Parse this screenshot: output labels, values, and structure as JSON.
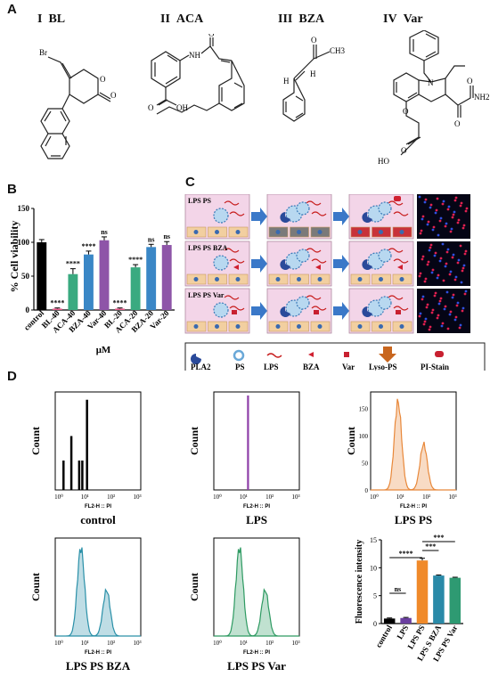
{
  "panels": {
    "A": "A",
    "B": "B",
    "C": "C",
    "D": "D"
  },
  "compounds": [
    {
      "numeral": "I",
      "name": "BL"
    },
    {
      "numeral": "II",
      "name": "ACA"
    },
    {
      "numeral": "III",
      "name": "BZA"
    },
    {
      "numeral": "IV",
      "name": "Var"
    }
  ],
  "atoms": {
    "br": "Br",
    "o": "O",
    "nh": "NH",
    "oh": "OH",
    "h": "H",
    "n": "N",
    "nh2": "NH2",
    "ch3": "CH3",
    "ho": "HO"
  },
  "panelB": {
    "chart_data": {
      "type": "bar",
      "categories": [
        "control",
        "BL-40",
        "ACA-40",
        "BZA-40",
        "Var-40",
        "BL-20",
        "ACA-20",
        "BZA-20",
        "Var-20"
      ],
      "values": [
        100,
        2,
        53,
        82,
        103,
        2,
        63,
        93,
        96
      ],
      "errors": [
        4,
        1,
        8,
        5,
        5,
        1,
        4,
        4,
        5
      ],
      "significance": [
        "",
        "****",
        "****",
        "****",
        "ns",
        "****",
        "****",
        "ns",
        "ns"
      ],
      "colors": [
        "#000000",
        "#e85a8a",
        "#3aaa80",
        "#3a87c6",
        "#8e55a8",
        "#e85a8a",
        "#3aaa80",
        "#3a87c6",
        "#8e55a8"
      ],
      "ylabel": "% Cell viability",
      "xlabel": "μM",
      "ylim": [
        0,
        150
      ],
      "yticks": [
        "0",
        "50",
        "100",
        "150"
      ]
    }
  },
  "panelC": {
    "rows": [
      {
        "label": "LPS PS"
      },
      {
        "label": "LPS PS  BZA"
      },
      {
        "label": "LPS PS Var"
      }
    ],
    "legend": [
      "PLA2",
      "PS",
      "LPS",
      "BZA",
      "Var",
      "Lyso-PS",
      "PI-Stain"
    ]
  },
  "panelD": {
    "histograms": [
      {
        "title": "control",
        "color": "#000000"
      },
      {
        "title": "LPS",
        "color": "#8e3fa8"
      },
      {
        "title": "LPS PS",
        "color": "#e8883a"
      },
      {
        "title": "LPS PS BZA",
        "color": "#2a90a8"
      },
      {
        "title": "LPS PS Var",
        "color": "#2e9a62"
      }
    ],
    "xaxis_label": "FL2-H :: PI",
    "yaxis_label": "Count",
    "xticks": [
      "10⁰",
      "10¹",
      "10²",
      "10³"
    ],
    "yticks_lps_ps": [
      "0",
      "50",
      "100",
      "150"
    ],
    "bar_chart": {
      "chart_data": {
        "type": "bar",
        "categories": [
          "control",
          "LPS",
          "LPS PS",
          "LPS S  BZA",
          "LPS PS Var"
        ],
        "values": [
          0.9,
          1.0,
          11.3,
          8.6,
          8.2
        ],
        "errors": [
          0.1,
          0.1,
          0.4,
          0.1,
          0.1
        ],
        "colors": [
          "#000000",
          "#6a3fa0",
          "#f08a2a",
          "#2a8aa8",
          "#2e9a72"
        ],
        "ylabel": "Fluorescence intensity",
        "ylim": [
          0,
          15
        ],
        "yticks": [
          "0",
          "5",
          "10",
          "15"
        ],
        "significance": [
          {
            "from": 0,
            "to": 1,
            "label": "ns"
          },
          {
            "from": 0,
            "to": 2,
            "label": "****"
          },
          {
            "from": 2,
            "to": 3,
            "label": "***"
          },
          {
            "from": 2,
            "to": 4,
            "label": "***"
          }
        ]
      }
    }
  }
}
